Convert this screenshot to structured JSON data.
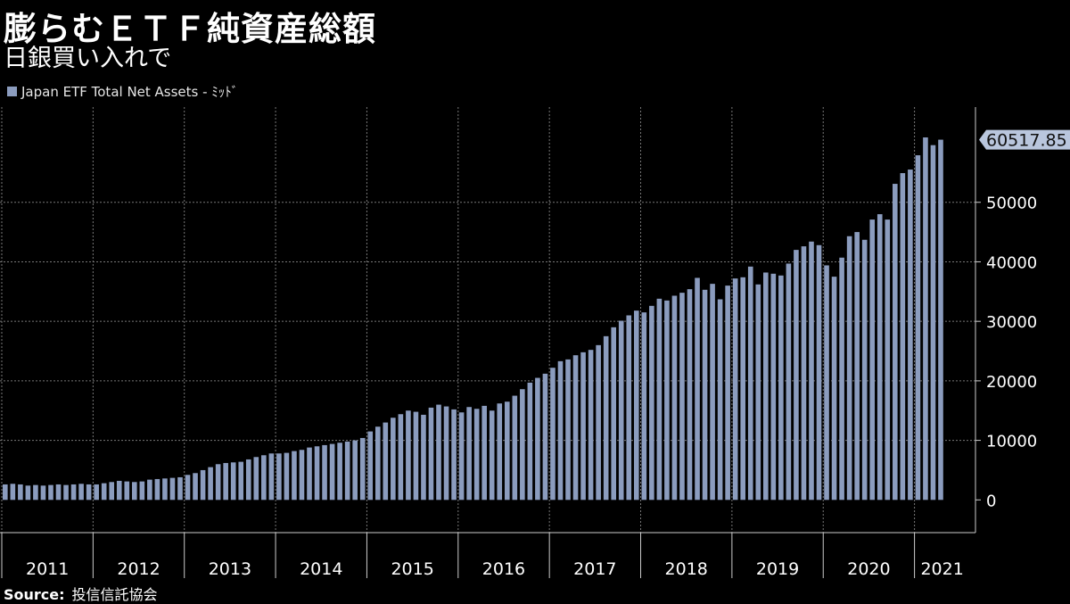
{
  "header": {
    "title": "膨らむＥＴＦ純資産総額",
    "subtitle": "日銀買い入れで"
  },
  "legend": {
    "label": "Japan ETF Total Net Assets - ﾐｯﾄﾞ",
    "color": "#8b9cbe"
  },
  "source": {
    "label": "Source:",
    "text": "投信信託協会"
  },
  "last_value_label": "60517.85",
  "chart_data": {
    "type": "bar",
    "series": [
      {
        "name": "Japan ETF Total Net Assets - ﾐｯﾄﾞ",
        "start": "2011-01",
        "frequency": "monthly",
        "values": [
          2600,
          2700,
          2600,
          2400,
          2500,
          2400,
          2500,
          2600,
          2500,
          2600,
          2700,
          2600,
          2600,
          2800,
          3000,
          3200,
          3100,
          3000,
          3100,
          3400,
          3500,
          3600,
          3700,
          3800,
          4200,
          4500,
          5000,
          5500,
          6000,
          6200,
          6300,
          6400,
          6800,
          7200,
          7500,
          7800,
          7800,
          7900,
          8200,
          8400,
          8800,
          9000,
          9200,
          9400,
          9600,
          9800,
          10000,
          10400,
          11500,
          12300,
          13000,
          13800,
          14400,
          15000,
          14800,
          14300,
          15500,
          16000,
          15700,
          15200,
          14700,
          15600,
          15300,
          15800,
          15000,
          16200,
          16500,
          17500,
          18600,
          19700,
          20500,
          21200,
          22200,
          23300,
          23600,
          24300,
          24800,
          25200,
          26000,
          27500,
          29000,
          30100,
          31000,
          31800,
          31500,
          32600,
          33800,
          33500,
          34300,
          34800,
          35400,
          37300,
          35300,
          36300,
          33700,
          36000,
          37200,
          37400,
          39200,
          36200,
          38200,
          38000,
          37700,
          39700,
          42000,
          42600,
          43400,
          42800,
          39400,
          37500,
          40700,
          44300,
          45000,
          43700,
          47100,
          48000,
          47100,
          53100,
          54900,
          55500,
          57900,
          60900,
          59600,
          60518
        ]
      }
    ],
    "x_tick_labels": [
      "2011",
      "2012",
      "2013",
      "2014",
      "2015",
      "2016",
      "2017",
      "2018",
      "2019",
      "2020",
      "2021"
    ],
    "y_ticks": [
      0,
      10000,
      20000,
      30000,
      40000,
      50000
    ],
    "ylim": [
      -5500,
      66000
    ],
    "grid": true,
    "legend_position": "top-left",
    "title": "膨らむＥＴＦ純資産総額",
    "subtitle": "日銀買い入れで"
  }
}
